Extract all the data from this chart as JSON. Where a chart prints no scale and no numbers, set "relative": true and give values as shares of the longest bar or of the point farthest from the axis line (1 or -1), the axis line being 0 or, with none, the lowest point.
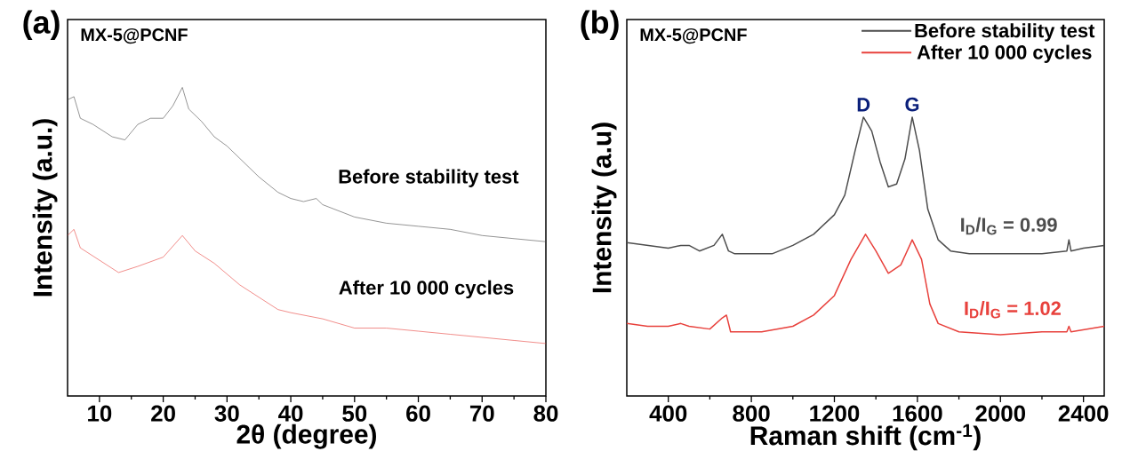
{
  "chart_data": [
    {
      "type": "line",
      "title": "(a)",
      "xlabel": "2θ (degree)",
      "ylabel": "Intensity (a.u.)",
      "relative": true,
      "legend": false,
      "xlim": [
        5,
        80
      ],
      "xticks": [
        10,
        20,
        30,
        40,
        50,
        60,
        70,
        80
      ],
      "annotations": [
        "MX-5@PCNF"
      ],
      "series": [
        {
          "name": "Before stability test",
          "color": "#4d4d4d",
          "x": [
            5,
            6,
            7,
            9,
            12,
            14,
            16,
            18,
            20,
            21.5,
            23,
            24,
            26,
            28,
            30,
            32,
            35,
            38,
            40,
            42,
            44,
            45,
            50,
            55,
            60,
            65,
            70,
            75,
            80
          ],
          "values": [
            0.96,
            0.97,
            0.9,
            0.88,
            0.84,
            0.83,
            0.88,
            0.9,
            0.9,
            0.94,
            1.0,
            0.93,
            0.89,
            0.84,
            0.81,
            0.77,
            0.71,
            0.66,
            0.64,
            0.63,
            0.64,
            0.62,
            0.58,
            0.56,
            0.55,
            0.54,
            0.52,
            0.51,
            0.5
          ]
        },
        {
          "name": "After 10 000 cycles",
          "color": "#e8413c",
          "x": [
            5,
            6,
            7,
            10,
            13,
            16,
            20,
            23,
            25,
            28,
            32,
            35,
            38,
            40,
            45,
            50,
            55,
            60,
            65,
            70,
            75,
            80
          ],
          "values": [
            0.52,
            0.54,
            0.48,
            0.44,
            0.4,
            0.42,
            0.45,
            0.52,
            0.47,
            0.43,
            0.36,
            0.32,
            0.28,
            0.27,
            0.25,
            0.22,
            0.22,
            0.21,
            0.2,
            0.19,
            0.18,
            0.17
          ]
        }
      ]
    },
    {
      "type": "line",
      "title": "(b)",
      "xlabel": "Raman shift (cm$^{-1}$)",
      "ylabel": "Intensity (a.u)",
      "relative": true,
      "legend": "top right",
      "xlim": [
        200,
        2500
      ],
      "xticks": [
        400,
        800,
        1200,
        1600,
        2000,
        2400
      ],
      "annotations": [
        "MX-5@PCNF",
        {
          "text": "D",
          "x": 1340,
          "y": 1.0
        },
        {
          "text": "G",
          "x": 1575,
          "y": 1.0
        },
        "I$_{D}$/I$_{G}$ = 0.99",
        "I$_{D}$/I$_{G}$ = 1.02"
      ],
      "series": [
        {
          "name": "Before stability test",
          "color": "#4d4d4d",
          "x": [
            200,
            300,
            400,
            460,
            500,
            550,
            620,
            660,
            690,
            720,
            800,
            900,
            1000,
            1100,
            1200,
            1250,
            1300,
            1340,
            1380,
            1420,
            1460,
            1500,
            1540,
            1575,
            1610,
            1650,
            1700,
            1760,
            1850,
            2000,
            2200,
            2320,
            2330,
            2340,
            2400,
            2500
          ],
          "values": [
            0.55,
            0.54,
            0.53,
            0.54,
            0.54,
            0.52,
            0.54,
            0.58,
            0.52,
            0.51,
            0.51,
            0.51,
            0.54,
            0.58,
            0.65,
            0.72,
            0.88,
            1.0,
            0.95,
            0.84,
            0.75,
            0.76,
            0.85,
            1.0,
            0.88,
            0.67,
            0.56,
            0.52,
            0.51,
            0.51,
            0.51,
            0.52,
            0.56,
            0.52,
            0.53,
            0.54
          ]
        },
        {
          "name": "After 10 000 cycles",
          "color": "#e8413c",
          "x": [
            200,
            300,
            400,
            460,
            500,
            600,
            660,
            680,
            700,
            850,
            1000,
            1100,
            1200,
            1280,
            1350,
            1400,
            1460,
            1520,
            1575,
            1620,
            1660,
            1700,
            1800,
            2000,
            2200,
            2320,
            2330,
            2340,
            2500
          ],
          "values": [
            0.26,
            0.25,
            0.25,
            0.26,
            0.25,
            0.24,
            0.28,
            0.29,
            0.23,
            0.23,
            0.25,
            0.29,
            0.36,
            0.49,
            0.58,
            0.52,
            0.44,
            0.47,
            0.56,
            0.49,
            0.33,
            0.26,
            0.23,
            0.22,
            0.23,
            0.23,
            0.25,
            0.23,
            0.25
          ]
        }
      ]
    }
  ]
}
